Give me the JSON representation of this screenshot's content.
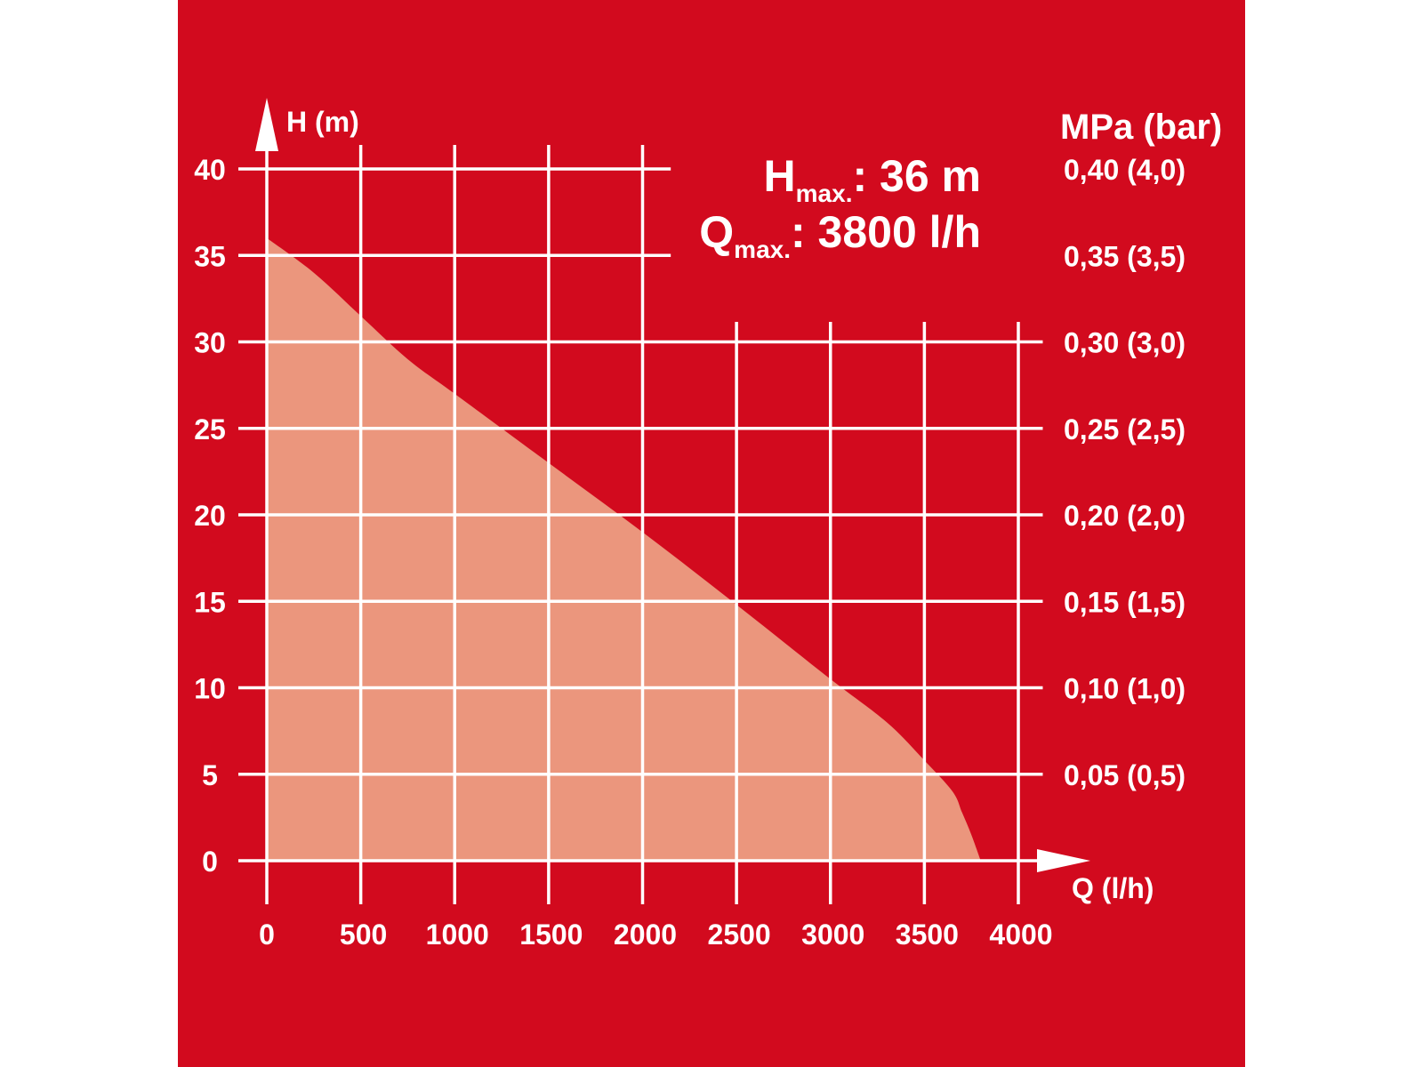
{
  "colors": {
    "background": "#d20a1e",
    "fill": "#eb967d",
    "lines": "#ffffff",
    "outside": "#ffffff"
  },
  "chart_data": {
    "type": "area",
    "title": "",
    "xlabel": "Q (l/h)",
    "ylabel": "H (m)",
    "right_axis_title": "MPa (bar)",
    "xlim": [
      0,
      4000
    ],
    "ylim": [
      0,
      40
    ],
    "x_ticks": [
      "0",
      "500",
      "1000",
      "1500",
      "2000",
      "2500",
      "3000",
      "3500",
      "4000"
    ],
    "y_ticks": [
      "0",
      "5",
      "10",
      "15",
      "20",
      "25",
      "30",
      "35",
      "40"
    ],
    "right_ticks": [
      {
        "h": 5,
        "label": "0,05 (0,5)"
      },
      {
        "h": 10,
        "label": "0,10 (1,0)"
      },
      {
        "h": 15,
        "label": "0,15 (1,5)"
      },
      {
        "h": 20,
        "label": "0,20 (2,0)"
      },
      {
        "h": 25,
        "label": "0,25 (2,5)"
      },
      {
        "h": 30,
        "label": "0,30 (3,0)"
      },
      {
        "h": 35,
        "label": "0,35 (3,5)"
      },
      {
        "h": 40,
        "label": "0,40 (4,0)"
      }
    ],
    "series": [
      {
        "x": [
          0,
          250,
          500,
          750,
          1000,
          1500,
          2000,
          2500,
          3000,
          3300,
          3500,
          3650,
          3700,
          3750,
          3800
        ],
        "y": [
          36,
          34,
          31.5,
          29,
          27,
          23,
          19,
          14.8,
          10.5,
          8,
          5.8,
          4,
          2.8,
          1.5,
          0
        ]
      }
    ],
    "annotations": {
      "hmax_label": "H",
      "hmax_sub": "max.",
      "hmax_value": ": 36 m",
      "qmax_label": "Q",
      "qmax_sub": "max.",
      "qmax_value": ": 3800 l/h"
    }
  }
}
